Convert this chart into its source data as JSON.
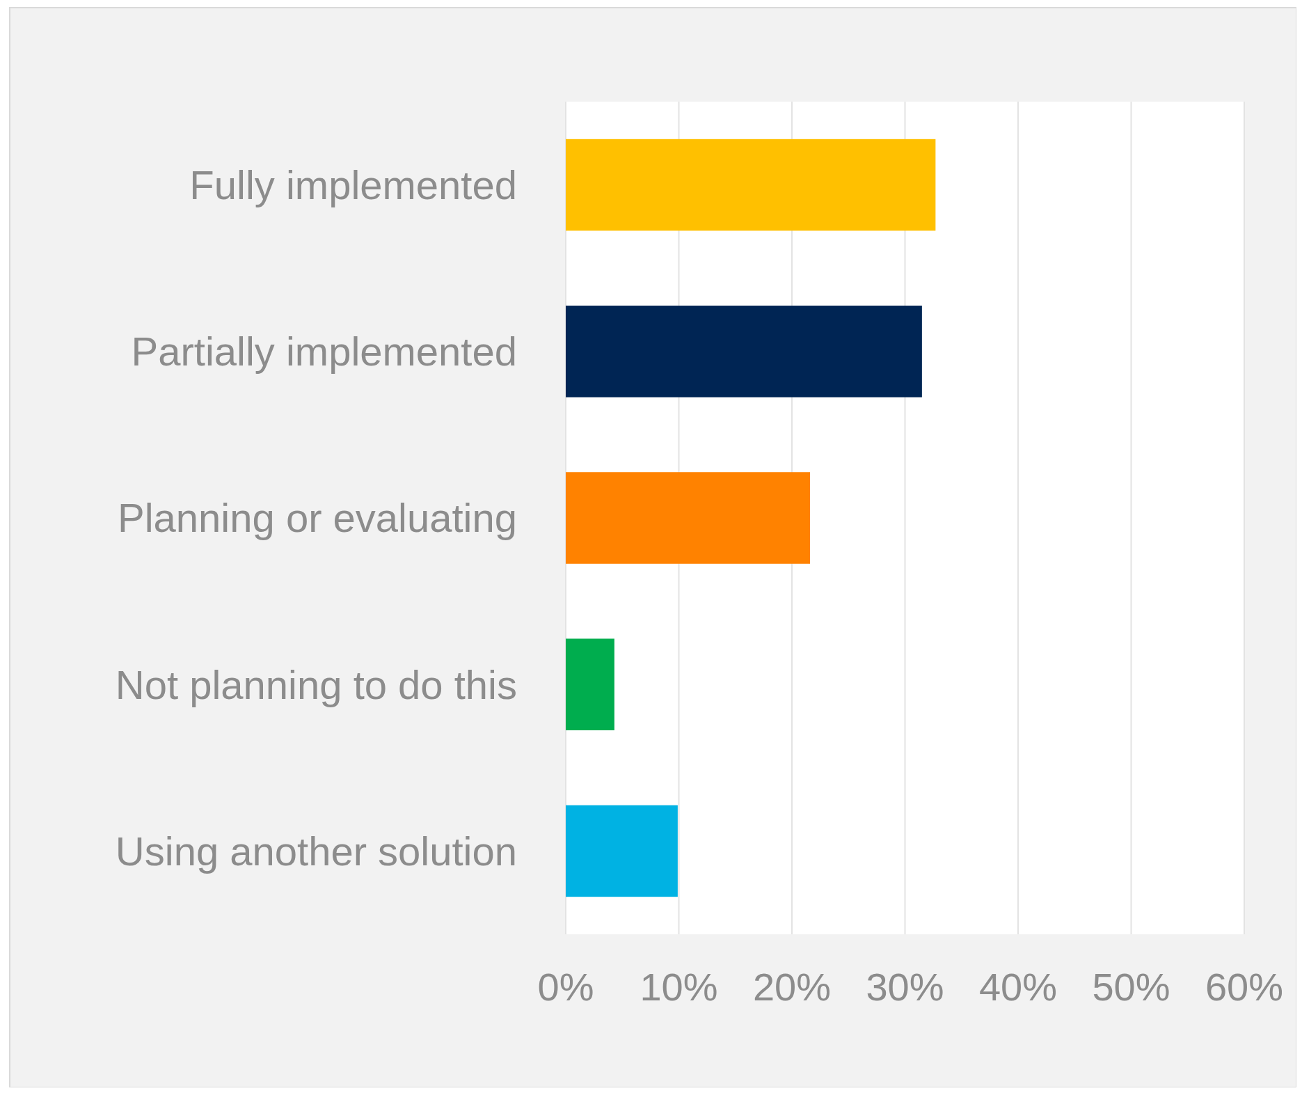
{
  "chart_data": {
    "type": "bar",
    "orientation": "horizontal",
    "categories": [
      "Fully implemented",
      "Partially implemented",
      "Planning or evaluating",
      "Not planning to do this",
      "Using another solution"
    ],
    "values": [
      32.7,
      31.5,
      21.6,
      4.3,
      9.9
    ],
    "colors": [
      "#ffc000",
      "#002554",
      "#ff8200",
      "#00ad4e",
      "#00b2e3"
    ],
    "xlim": [
      0,
      60
    ],
    "xticks": [
      {
        "value": 0,
        "label": "0%"
      },
      {
        "value": 10,
        "label": "10%"
      },
      {
        "value": 20,
        "label": "20%"
      },
      {
        "value": 30,
        "label": "30%"
      },
      {
        "value": 40,
        "label": "40%"
      },
      {
        "value": 50,
        "label": "50%"
      },
      {
        "value": 60,
        "label": "60%"
      }
    ],
    "grid": "x"
  }
}
